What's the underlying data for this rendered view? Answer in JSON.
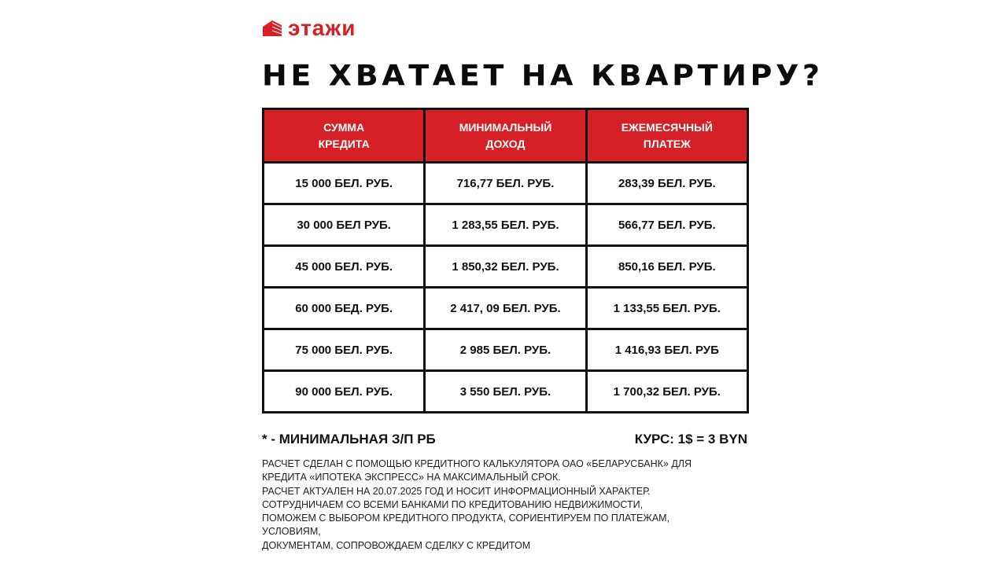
{
  "logo": {
    "text": "этажи",
    "brand_color": "#d62027"
  },
  "title": "НЕ ХВАТАЕТ НА КВАРТИРУ?",
  "table": {
    "headers": [
      [
        "СУММА",
        "КРЕДИТА"
      ],
      [
        "МИНИМАЛЬНЫЙ",
        "ДОХОД"
      ],
      [
        "ЕЖЕМЕСЯЧНЫЙ",
        "ПЛАТЕЖ"
      ]
    ],
    "rows": [
      [
        "15 000 БЕЛ. РУБ.",
        "716,77 БЕЛ. РУБ.",
        "283,39 БЕЛ. РУБ."
      ],
      [
        "30 000 БЕЛ РУБ.",
        "1 283,55 БЕЛ. РУБ.",
        "566,77 БЕЛ. РУБ."
      ],
      [
        "45 000 БЕЛ. РУБ.",
        "1 850,32 БЕЛ. РУБ.",
        "850,16 БЕЛ. РУБ."
      ],
      [
        "60 000 БЕД. РУБ.",
        "2 417, 09 БЕЛ. РУБ.",
        "1 133,55 БЕЛ. РУБ."
      ],
      [
        "75 000 БЕЛ. РУБ.",
        "2 985 БЕЛ. РУБ.",
        "1 416,93 БЕЛ. РУБ"
      ],
      [
        "90 000 БЕЛ. РУБ.",
        "3 550 БЕЛ. РУБ.",
        "1 700,32 БЕЛ. РУБ."
      ]
    ]
  },
  "notes": {
    "min_wage": "* - МИНИМАЛЬНАЯ З/П РБ",
    "rate": "КУРС: 1$ = 3 BYN"
  },
  "disclaimer": [
    "РАСЧЕТ СДЕЛАН С ПОМОЩЬЮ КРЕДИТНОГО КАЛЬКУЛЯТОРА ОАО «БЕЛАРУСБАНК» ДЛЯ",
    "КРЕДИТА «ИПОТЕКА ЭКСПРЕСС» НА МАКСИМАЛЬНЫЙ СРОК.",
    "РАСЧЕТ АКТУАЛЕН НА 20.07.2025 ГОД И НОСИТ ИНФОРМАЦИОННЫЙ ХАРАКТЕР.",
    "СОТРУДНИЧАЕМ СО ВСЕМИ БАНКАМИ ПО КРЕДИТОВАНИЮ НЕДВИЖИМОСТИ,",
    "ПОМОЖЕМ С ВЫБОРОМ КРЕДИТНОГО ПРОДУКТА, СОРИЕНТИРУЕМ ПО ПЛАТЕЖАМ,",
    "УСЛОВИЯМ,",
    "ДОКУМЕНТАМ, СОПРОВОЖДАЕМ СДЕЛКУ С КРЕДИТОМ"
  ]
}
